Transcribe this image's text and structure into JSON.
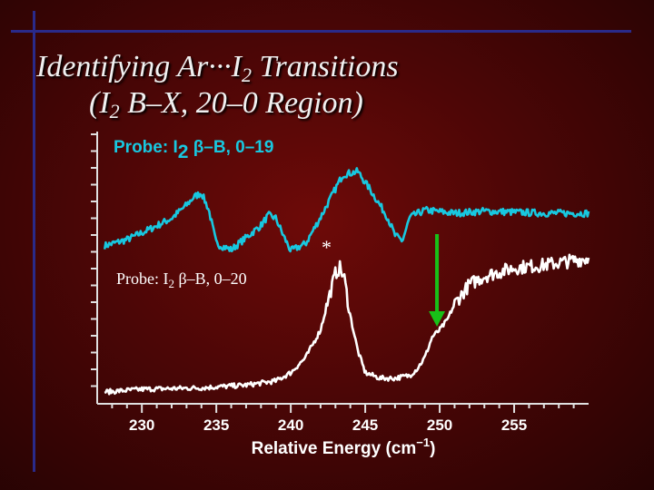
{
  "slide": {
    "title_line1_a": "Identifying Ar···I",
    "title_line1_sub": "2",
    "title_line1_b": " Transitions",
    "title_line2_a": "(I",
    "title_line2_sub": "2",
    "title_line2_b": " B–X, 20–0 Region)"
  },
  "chart_data": {
    "type": "line",
    "xlabel": "Relative Energy (cm−1)",
    "xlim": [
      227,
      260
    ],
    "x_ticks": [
      "230",
      "235",
      "240",
      "245",
      "250",
      "255"
    ],
    "annotations": {
      "star": "*",
      "arrow_x": 250
    },
    "series": [
      {
        "name": "Probe: I2 β–B, 0–19",
        "name_parts": {
          "a": "Probe: I",
          "sub": "2",
          "b": " β–B, 0–19"
        },
        "color": "#18c8e0",
        "x": [
          227.5,
          229,
          230.5,
          232,
          233,
          233.5,
          234,
          234.5,
          235,
          236,
          237,
          238,
          238.5,
          239,
          239.5,
          240,
          241,
          242,
          243,
          243.5,
          244.5,
          245.3,
          246.5,
          247,
          247.5,
          248,
          249,
          251,
          253,
          255,
          257,
          260
        ],
        "y": [
          0.1,
          0.16,
          0.26,
          0.37,
          0.5,
          0.58,
          0.62,
          0.45,
          0.12,
          0.06,
          0.18,
          0.3,
          0.4,
          0.37,
          0.2,
          0.05,
          0.12,
          0.38,
          0.66,
          0.8,
          0.83,
          0.66,
          0.38,
          0.2,
          0.15,
          0.38,
          0.45,
          0.42,
          0.44,
          0.43,
          0.42,
          0.42
        ]
      },
      {
        "name": "Probe: I2 β–B, 0–20",
        "name_parts": {
          "a": "Probe: I",
          "sub": "2",
          "b": " β–B, 0–20"
        },
        "color": "#ffffff",
        "x": [
          227.5,
          230,
          234,
          237,
          239,
          240,
          241,
          242,
          242.5,
          243,
          243.3,
          243.6,
          244,
          244.5,
          245,
          246,
          247,
          248,
          248.5,
          249,
          249.5,
          250,
          250.5,
          251,
          252,
          253,
          255,
          257,
          260
        ],
        "y": [
          0.0,
          0.02,
          0.03,
          0.05,
          0.08,
          0.14,
          0.25,
          0.45,
          0.66,
          0.86,
          0.9,
          0.82,
          0.55,
          0.3,
          0.14,
          0.1,
          0.1,
          0.12,
          0.17,
          0.25,
          0.4,
          0.45,
          0.52,
          0.64,
          0.78,
          0.84,
          0.9,
          0.92,
          0.97
        ]
      }
    ]
  }
}
